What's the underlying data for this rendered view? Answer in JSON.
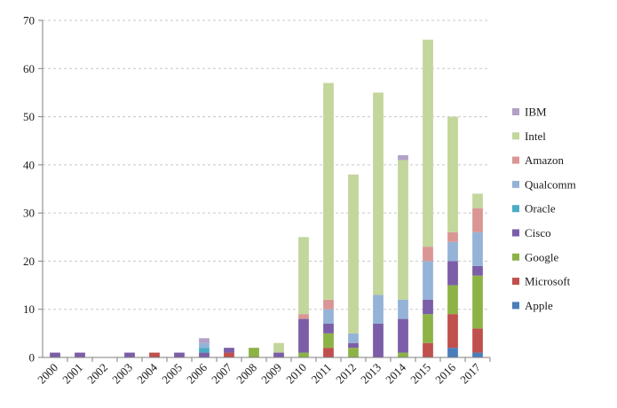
{
  "chart_data": {
    "type": "bar",
    "stacked": true,
    "title": "",
    "xlabel": "",
    "ylabel": "",
    "ylim": [
      0,
      70
    ],
    "yticks": [
      0,
      10,
      20,
      30,
      40,
      50,
      60,
      70
    ],
    "grid": "horizontal-dashed",
    "legend_position": "right",
    "categories": [
      "2000",
      "2001",
      "2002",
      "2003",
      "2004",
      "2005",
      "2006",
      "2007",
      "2008",
      "2009",
      "2010",
      "2011",
      "2012",
      "2013",
      "2014",
      "2015",
      "2016",
      "2017"
    ],
    "series": [
      {
        "name": "Apple",
        "color": "#4a7ebb",
        "values": [
          0,
          0,
          0,
          0,
          0,
          0,
          0,
          0,
          0,
          0,
          0,
          0,
          0,
          0,
          0,
          0,
          2,
          1
        ]
      },
      {
        "name": "Microsoft",
        "color": "#c0504d",
        "values": [
          0,
          0,
          0,
          0,
          1,
          0,
          0,
          1,
          0,
          0,
          0,
          2,
          0,
          0,
          0,
          3,
          7,
          5
        ]
      },
      {
        "name": "Google",
        "color": "#8db347",
        "values": [
          0,
          0,
          0,
          0,
          0,
          0,
          0,
          0,
          2,
          0,
          1,
          3,
          2,
          0,
          1,
          6,
          6,
          11
        ]
      },
      {
        "name": "Cisco",
        "color": "#7b5ea7",
        "values": [
          1,
          1,
          0,
          1,
          0,
          1,
          1,
          1,
          0,
          1,
          7,
          2,
          1,
          7,
          7,
          3,
          5,
          2
        ]
      },
      {
        "name": "Oracle",
        "color": "#4bacc6",
        "values": [
          0,
          0,
          0,
          0,
          0,
          0,
          1,
          0,
          0,
          0,
          0,
          0,
          0,
          0,
          0,
          0,
          0,
          0
        ]
      },
      {
        "name": "Qualcomm",
        "color": "#95b3d7",
        "values": [
          0,
          0,
          0,
          0,
          0,
          0,
          1,
          0,
          0,
          0,
          0,
          3,
          2,
          6,
          4,
          8,
          4,
          7
        ]
      },
      {
        "name": "Amazon",
        "color": "#da9694",
        "values": [
          0,
          0,
          0,
          0,
          0,
          0,
          0,
          0,
          0,
          0,
          1,
          2,
          0,
          0,
          0,
          3,
          2,
          5
        ]
      },
      {
        "name": "Intel",
        "color": "#c3d69b",
        "values": [
          0,
          0,
          0,
          0,
          0,
          0,
          0,
          0,
          0,
          2,
          16,
          45,
          33,
          42,
          29,
          43,
          24,
          3
        ]
      },
      {
        "name": "IBM",
        "color": "#b2a1c7",
        "values": [
          0,
          0,
          0,
          0,
          0,
          0,
          1,
          0,
          0,
          0,
          0,
          0,
          0,
          0,
          1,
          0,
          0,
          0
        ]
      }
    ]
  }
}
